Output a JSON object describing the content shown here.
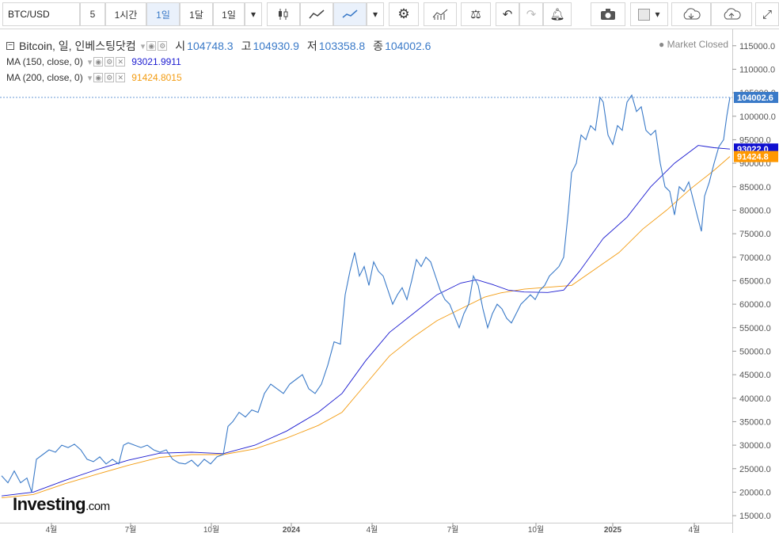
{
  "toolbar": {
    "symbol": "BTC/USD",
    "intervals": [
      "5",
      "1시간",
      "1일",
      "1달",
      "1일"
    ],
    "active_interval_index": 2
  },
  "legend": {
    "title": "Bitcoin, 일, 인베스팅닷컴",
    "open_label": "시",
    "open": "104748.3",
    "high_label": "고",
    "high": "104930.9",
    "low_label": "저",
    "low": "103358.8",
    "close_label": "종",
    "close": "104002.6",
    "ma150_label": "MA (150, close, 0)",
    "ma150_value": "93021.9911",
    "ma200_label": "MA (200, close, 0)",
    "ma200_value": "91424.8015"
  },
  "status": "Market Closed",
  "logo": {
    "name": "Investing",
    "suffix": ".com"
  },
  "colors": {
    "price": "#3a7ac8",
    "ma150": "#1a1ad0",
    "ma200": "#f39c12",
    "last_price_bg": "#3a7ac8",
    "ma150_bg": "#1010d0",
    "ma200_bg": "#ff9800"
  },
  "chart_data": {
    "type": "line",
    "y_ticks": [
      115000,
      110000,
      105000,
      100000,
      95000,
      90000,
      85000,
      80000,
      75000,
      70000,
      65000,
      60000,
      55000,
      50000,
      45000,
      40000,
      35000,
      30000,
      25000,
      20000,
      15000
    ],
    "ylim": [
      13500,
      118500
    ],
    "x_ticks": [
      "4월",
      "7월",
      "10월",
      "2024",
      "4월",
      "7월",
      "10월",
      "2025",
      "4월"
    ],
    "last_labels": {
      "price": "104002.6",
      "ma150": "93022.0",
      "ma200": "91424.8"
    },
    "series": [
      {
        "name": "Bitcoin",
        "points": [
          [
            0,
            23500
          ],
          [
            8,
            22000
          ],
          [
            16,
            24500
          ],
          [
            24,
            22000
          ],
          [
            32,
            23000
          ],
          [
            38,
            20000
          ],
          [
            44,
            27000
          ],
          [
            52,
            28000
          ],
          [
            60,
            29000
          ],
          [
            68,
            28500
          ],
          [
            76,
            30000
          ],
          [
            84,
            29500
          ],
          [
            92,
            30200
          ],
          [
            100,
            29000
          ],
          [
            108,
            27000
          ],
          [
            116,
            26500
          ],
          [
            124,
            27500
          ],
          [
            132,
            26000
          ],
          [
            140,
            27000
          ],
          [
            148,
            26000
          ],
          [
            154,
            30000
          ],
          [
            160,
            30500
          ],
          [
            168,
            30000
          ],
          [
            176,
            29500
          ],
          [
            184,
            30000
          ],
          [
            192,
            29000
          ],
          [
            200,
            28500
          ],
          [
            208,
            29000
          ],
          [
            216,
            27000
          ],
          [
            224,
            26200
          ],
          [
            232,
            26000
          ],
          [
            240,
            26800
          ],
          [
            248,
            25500
          ],
          [
            256,
            27000
          ],
          [
            264,
            26000
          ],
          [
            272,
            27500
          ],
          [
            280,
            28000
          ],
          [
            286,
            34000
          ],
          [
            292,
            35000
          ],
          [
            300,
            37000
          ],
          [
            308,
            36000
          ],
          [
            316,
            37500
          ],
          [
            324,
            37000
          ],
          [
            332,
            41000
          ],
          [
            340,
            43000
          ],
          [
            348,
            42000
          ],
          [
            356,
            41000
          ],
          [
            364,
            43000
          ],
          [
            372,
            44000
          ],
          [
            380,
            45000
          ],
          [
            388,
            42000
          ],
          [
            396,
            41000
          ],
          [
            404,
            43000
          ],
          [
            412,
            47000
          ],
          [
            420,
            52000
          ],
          [
            428,
            51500
          ],
          [
            434,
            62000
          ],
          [
            440,
            67000
          ],
          [
            446,
            71000
          ],
          [
            452,
            66000
          ],
          [
            458,
            68000
          ],
          [
            464,
            64000
          ],
          [
            470,
            69000
          ],
          [
            476,
            67000
          ],
          [
            482,
            66000
          ],
          [
            488,
            63000
          ],
          [
            494,
            60000
          ],
          [
            500,
            62000
          ],
          [
            506,
            63500
          ],
          [
            512,
            61000
          ],
          [
            518,
            65000
          ],
          [
            524,
            69500
          ],
          [
            530,
            68000
          ],
          [
            536,
            70000
          ],
          [
            542,
            69000
          ],
          [
            548,
            66000
          ],
          [
            554,
            63000
          ],
          [
            560,
            61000
          ],
          [
            566,
            60000
          ],
          [
            572,
            57500
          ],
          [
            578,
            55000
          ],
          [
            584,
            58000
          ],
          [
            590,
            60000
          ],
          [
            596,
            66000
          ],
          [
            602,
            64000
          ],
          [
            608,
            59000
          ],
          [
            614,
            55000
          ],
          [
            620,
            58000
          ],
          [
            626,
            60000
          ],
          [
            632,
            59000
          ],
          [
            638,
            57000
          ],
          [
            644,
            56000
          ],
          [
            650,
            58000
          ],
          [
            656,
            60000
          ],
          [
            662,
            61000
          ],
          [
            668,
            62000
          ],
          [
            674,
            61000
          ],
          [
            680,
            63000
          ],
          [
            686,
            64000
          ],
          [
            692,
            66000
          ],
          [
            698,
            67000
          ],
          [
            704,
            68000
          ],
          [
            710,
            70000
          ],
          [
            716,
            80000
          ],
          [
            720,
            88000
          ],
          [
            726,
            90000
          ],
          [
            732,
            96000
          ],
          [
            738,
            95000
          ],
          [
            744,
            98000
          ],
          [
            750,
            97000
          ],
          [
            756,
            104000
          ],
          [
            760,
            103000
          ],
          [
            766,
            96000
          ],
          [
            772,
            94000
          ],
          [
            778,
            98000
          ],
          [
            784,
            97000
          ],
          [
            790,
            103000
          ],
          [
            796,
            104500
          ],
          [
            802,
            101000
          ],
          [
            808,
            102000
          ],
          [
            814,
            97000
          ],
          [
            820,
            96000
          ],
          [
            826,
            97000
          ],
          [
            832,
            90000
          ],
          [
            838,
            85000
          ],
          [
            844,
            84000
          ],
          [
            850,
            79000
          ],
          [
            856,
            85000
          ],
          [
            862,
            84000
          ],
          [
            868,
            86000
          ],
          [
            874,
            82000
          ],
          [
            880,
            78000
          ],
          [
            884,
            75500
          ],
          [
            888,
            83000
          ],
          [
            894,
            86000
          ],
          [
            900,
            90000
          ],
          [
            906,
            93500
          ],
          [
            912,
            95000
          ],
          [
            916,
            100000
          ],
          [
            920,
            104002.6
          ]
        ]
      },
      {
        "name": "MA (150, close, 0)",
        "points": [
          [
            0,
            19200
          ],
          [
            40,
            20000
          ],
          [
            80,
            22500
          ],
          [
            120,
            24800
          ],
          [
            160,
            26800
          ],
          [
            200,
            28300
          ],
          [
            240,
            28500
          ],
          [
            280,
            28200
          ],
          [
            320,
            30000
          ],
          [
            360,
            33000
          ],
          [
            400,
            37000
          ],
          [
            430,
            41000
          ],
          [
            460,
            48000
          ],
          [
            490,
            54000
          ],
          [
            520,
            58000
          ],
          [
            550,
            62000
          ],
          [
            580,
            64500
          ],
          [
            600,
            65200
          ],
          [
            620,
            64200
          ],
          [
            640,
            63000
          ],
          [
            660,
            62600
          ],
          [
            690,
            62500
          ],
          [
            710,
            63000
          ],
          [
            730,
            67000
          ],
          [
            760,
            74000
          ],
          [
            790,
            78500
          ],
          [
            820,
            85000
          ],
          [
            850,
            90000
          ],
          [
            880,
            93800
          ],
          [
            900,
            93300
          ],
          [
            920,
            93022
          ]
        ]
      },
      {
        "name": "MA (200, close, 0)",
        "points": [
          [
            0,
            18800
          ],
          [
            40,
            19500
          ],
          [
            80,
            21800
          ],
          [
            120,
            23800
          ],
          [
            160,
            25700
          ],
          [
            200,
            27400
          ],
          [
            240,
            28000
          ],
          [
            280,
            28000
          ],
          [
            320,
            29200
          ],
          [
            360,
            31500
          ],
          [
            400,
            34200
          ],
          [
            430,
            37000
          ],
          [
            460,
            43000
          ],
          [
            490,
            49000
          ],
          [
            520,
            53000
          ],
          [
            550,
            56500
          ],
          [
            580,
            59000
          ],
          [
            610,
            61500
          ],
          [
            630,
            62400
          ],
          [
            660,
            63200
          ],
          [
            690,
            63600
          ],
          [
            720,
            64000
          ],
          [
            750,
            67500
          ],
          [
            780,
            71000
          ],
          [
            810,
            76000
          ],
          [
            840,
            80000
          ],
          [
            870,
            84500
          ],
          [
            900,
            88500
          ],
          [
            920,
            91424.8
          ]
        ]
      }
    ]
  }
}
